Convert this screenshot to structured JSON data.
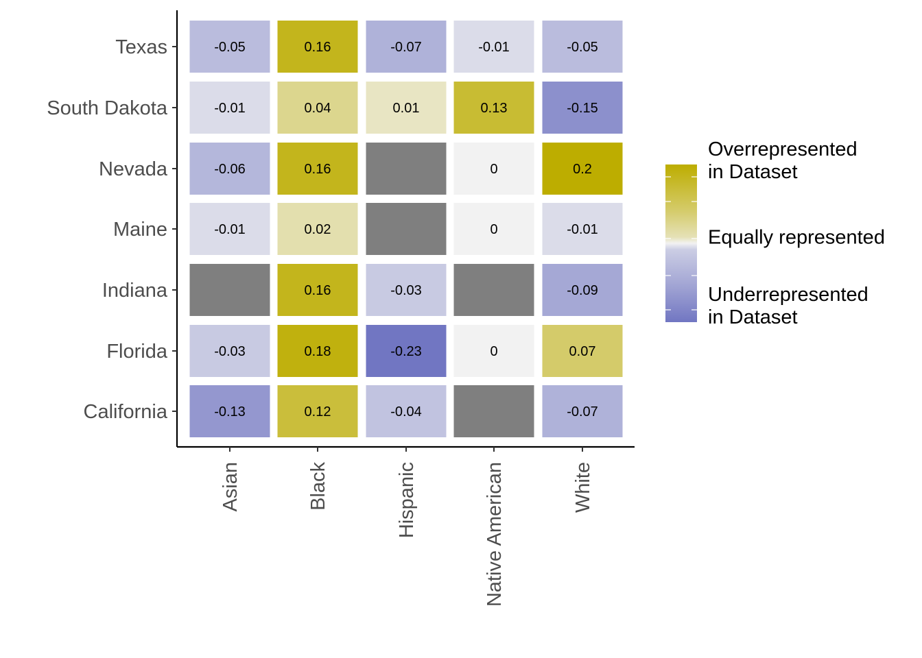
{
  "chart_data": {
    "type": "heatmap",
    "title": "",
    "xlabel": "",
    "ylabel": "",
    "x_categories": [
      "Asian",
      "Black",
      "Hispanic",
      "Native American",
      "White"
    ],
    "y_categories": [
      "Texas",
      "South Dakota",
      "Nevada",
      "Maine",
      "Indiana",
      "Florida",
      "California"
    ],
    "values": [
      [
        -0.05,
        0.16,
        -0.07,
        -0.01,
        -0.05
      ],
      [
        -0.01,
        0.04,
        0.01,
        0.13,
        -0.15
      ],
      [
        -0.06,
        0.16,
        null,
        0,
        0.2
      ],
      [
        -0.01,
        0.02,
        null,
        0,
        -0.01
      ],
      [
        null,
        0.16,
        -0.03,
        null,
        -0.09
      ],
      [
        -0.03,
        0.18,
        -0.23,
        0,
        0.07
      ],
      [
        -0.13,
        0.12,
        -0.04,
        null,
        -0.07
      ]
    ],
    "value_labels": [
      [
        "-0.05",
        "0.16",
        "-0.07",
        "-0.01",
        "-0.05"
      ],
      [
        "-0.01",
        "0.04",
        "0.01",
        "0.13",
        "-0.15"
      ],
      [
        "-0.06",
        "0.16",
        "",
        "0",
        "0.2"
      ],
      [
        "-0.01",
        "0.02",
        "",
        "0",
        "-0.01"
      ],
      [
        "",
        "0.16",
        "-0.03",
        "",
        "-0.09"
      ],
      [
        "-0.03",
        "0.18",
        "-0.23",
        "0",
        "0.07"
      ],
      [
        "-0.13",
        "0.12",
        "-0.04",
        "",
        "-0.07"
      ]
    ],
    "color_scale": {
      "low": "#7176c2",
      "mid": "#f2f2f2",
      "high": "#bdad00",
      "na": "#7f7f7f",
      "limits": [
        -0.23,
        0.2
      ]
    },
    "legend": {
      "position": "right",
      "labels": [
        "Overrepresented\nin Dataset",
        "Equally represented",
        "Underrepresented\nin Dataset"
      ]
    },
    "grid": false
  }
}
